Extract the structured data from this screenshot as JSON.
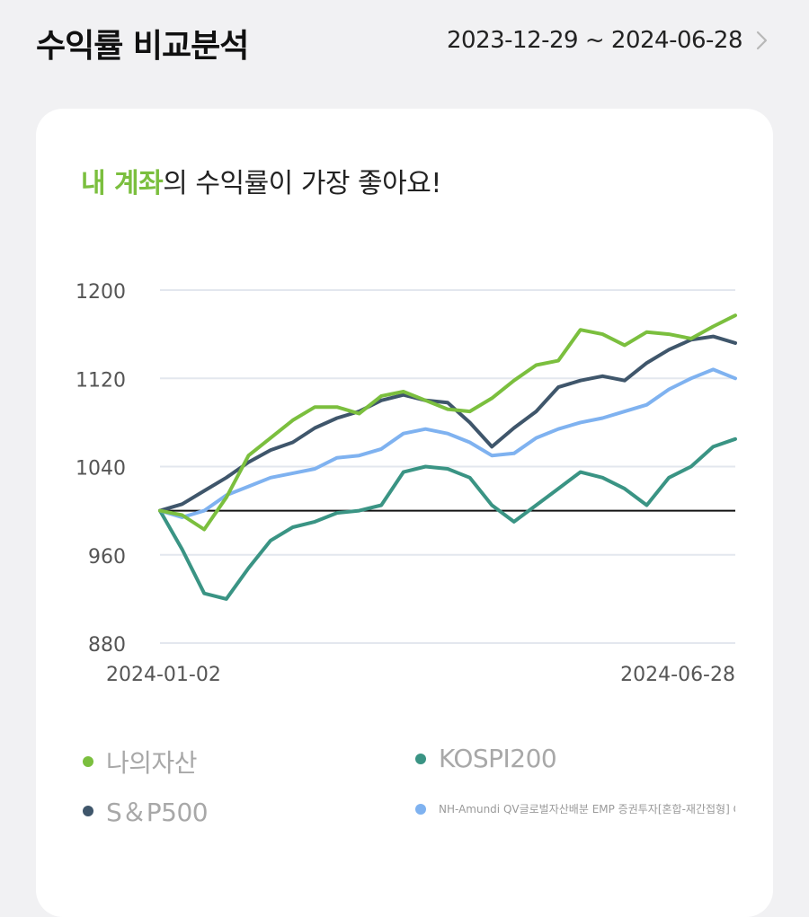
{
  "header": {
    "title": "수익률 비교분석",
    "period": "2023-12-29 ~ 2024-06-28"
  },
  "card": {
    "headline_highlight": "내 계좌",
    "headline_rest": "의 수익률이 가장 좋아요!"
  },
  "colors": {
    "my_assets": "#7bbf3e",
    "kospi": "#3a9484",
    "sp500": "#3f566b",
    "fund": "#7fb2f0",
    "baseline": "#111111",
    "grid": "#e3e7ee"
  },
  "chart_data": {
    "type": "line",
    "title": "",
    "xlabel": "",
    "ylabel": "",
    "ylim": [
      880,
      1200
    ],
    "yticks": [
      1200,
      1120,
      1040,
      960,
      880
    ],
    "xtick_labels": [
      "2024-01-02",
      "2024-06-28"
    ],
    "baseline": 1000,
    "x": [
      "2024-01-02",
      "2024-01-09",
      "2024-01-16",
      "2024-01-23",
      "2024-01-30",
      "2024-02-06",
      "2024-02-13",
      "2024-02-20",
      "2024-02-27",
      "2024-03-05",
      "2024-03-12",
      "2024-03-19",
      "2024-03-26",
      "2024-04-02",
      "2024-04-09",
      "2024-04-16",
      "2024-04-23",
      "2024-04-30",
      "2024-05-07",
      "2024-05-14",
      "2024-05-21",
      "2024-05-28",
      "2024-06-04",
      "2024-06-11",
      "2024-06-18",
      "2024-06-25",
      "2024-06-28"
    ],
    "series": [
      {
        "name": "나의자산",
        "values": [
          1000,
          996,
          983,
          1012,
          1050,
          1066,
          1082,
          1094,
          1094,
          1088,
          1104,
          1108,
          1100,
          1092,
          1090,
          1102,
          1118,
          1132,
          1136,
          1164,
          1160,
          1150,
          1162,
          1160,
          1156,
          1167,
          1177
        ]
      },
      {
        "name": "KOSPI200",
        "values": [
          1000,
          965,
          925,
          920,
          948,
          973,
          985,
          990,
          998,
          1000,
          1005,
          1035,
          1040,
          1038,
          1030,
          1005,
          990,
          1005,
          1020,
          1035,
          1030,
          1020,
          1005,
          1030,
          1040,
          1058,
          1065
        ]
      },
      {
        "name": "S&P500",
        "values": [
          1000,
          1006,
          1018,
          1030,
          1044,
          1055,
          1062,
          1075,
          1084,
          1090,
          1100,
          1105,
          1100,
          1098,
          1080,
          1058,
          1075,
          1090,
          1112,
          1118,
          1122,
          1118,
          1134,
          1146,
          1155,
          1158,
          1152
        ]
      },
      {
        "name": "NH-Amundi QV글로벌자산배분 EMP 증권투자[혼합-재간접형] C",
        "values": [
          1000,
          994,
          1000,
          1014,
          1022,
          1030,
          1034,
          1038,
          1048,
          1050,
          1056,
          1070,
          1074,
          1070,
          1062,
          1050,
          1052,
          1066,
          1074,
          1080,
          1084,
          1090,
          1096,
          1110,
          1120,
          1128,
          1120
        ]
      }
    ]
  },
  "legend": [
    {
      "label": "나의자산"
    },
    {
      "label": "KOSPI200"
    },
    {
      "label": "S＆P500"
    },
    {
      "label": "NH-Amundi QV글로벌자산배분 EMP 증권투자[혼합-재간접형] C"
    }
  ]
}
